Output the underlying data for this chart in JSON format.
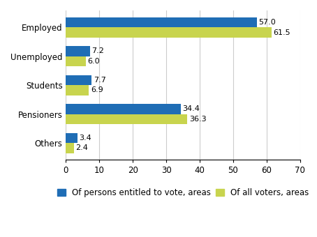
{
  "categories": [
    "Employed",
    "Unemployed",
    "Students",
    "Pensioners",
    "Others"
  ],
  "voters_all": [
    61.5,
    6.0,
    6.9,
    36.3,
    2.4
  ],
  "voters_entitled": [
    57.0,
    7.2,
    7.7,
    34.4,
    3.4
  ],
  "color_all": "#c8d44e",
  "color_entitled": "#1f6db5",
  "xlim": [
    0,
    70
  ],
  "xticks": [
    0,
    10,
    20,
    30,
    40,
    50,
    60,
    70
  ],
  "bar_height": 0.35,
  "label_all": "Of all voters, areas",
  "label_entitled": "Of persons entitled to vote, areas",
  "value_fontsize": 8,
  "tick_fontsize": 8.5,
  "label_fontsize": 8.5,
  "background_color": "#ffffff"
}
